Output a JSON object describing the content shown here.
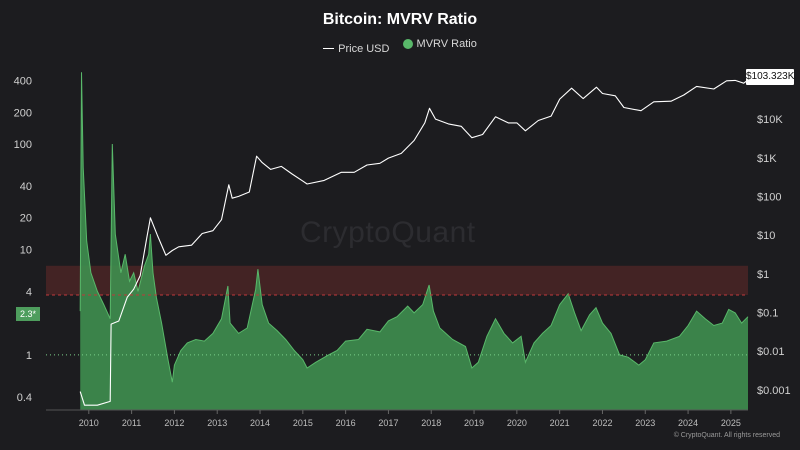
{
  "chart_data": {
    "type": "line",
    "title": "Bitcoin: MVRV Ratio",
    "watermark": "CryptoQuant",
    "copyright": "© CryptoQuant. All rights reserved",
    "legend": {
      "placement": "top-center",
      "entries": [
        "Price USD",
        "MVRV Ratio"
      ]
    },
    "grid": false,
    "x_ticks": [
      "2010",
      "2011",
      "2012",
      "2013",
      "2014",
      "2015",
      "2016",
      "2017",
      "2018",
      "2019",
      "2020",
      "2021",
      "2022",
      "2023",
      "2024",
      "2025"
    ],
    "x_range": [
      2009.0,
      2025.4
    ],
    "left_axis": {
      "scale": "log",
      "range": [
        0.3,
        600
      ],
      "ticks": [
        400,
        200,
        100,
        40,
        20,
        10,
        4,
        1,
        0.4
      ]
    },
    "right_axis": {
      "scale": "log",
      "range": [
        0.0003,
        300000
      ],
      "ticks": [
        {
          "value": 10000,
          "label": "$10K"
        },
        {
          "value": 1000,
          "label": "$1K"
        },
        {
          "value": 100,
          "label": "$100"
        },
        {
          "value": 10,
          "label": "$10"
        },
        {
          "value": 1,
          "label": "$1"
        },
        {
          "value": 0.1,
          "label": "$0.1"
        },
        {
          "value": 0.01,
          "label": "$0.01"
        },
        {
          "value": 0.001,
          "label": "$0.001"
        }
      ]
    },
    "current_price_label": "$103.323K",
    "current_mvrv_label": "2.3*",
    "zones": {
      "overvalued_band": [
        3.7,
        7
      ],
      "red_dashed_level": 3.7,
      "green_dotted_level": 1.0
    },
    "colors": {
      "mvrv_fill": "#3f8f4f",
      "mvrv_line": "#59b86a",
      "price": "#ffffff",
      "red_zone": "#4a2426",
      "background": "#1c1c1f"
    },
    "series": [
      {
        "name": "MVRV Ratio",
        "axis": "left",
        "points": [
          [
            2009.8,
            2.6
          ],
          [
            2009.83,
            480
          ],
          [
            2009.87,
            60
          ],
          [
            2009.95,
            12
          ],
          [
            2010.05,
            6
          ],
          [
            2010.2,
            4
          ],
          [
            2010.35,
            3
          ],
          [
            2010.5,
            2.2
          ],
          [
            2010.55,
            100
          ],
          [
            2010.62,
            14
          ],
          [
            2010.75,
            6
          ],
          [
            2010.85,
            9
          ],
          [
            2010.95,
            5
          ],
          [
            2011.05,
            6
          ],
          [
            2011.15,
            4
          ],
          [
            2011.3,
            7
          ],
          [
            2011.4,
            9
          ],
          [
            2011.44,
            14
          ],
          [
            2011.5,
            6
          ],
          [
            2011.58,
            3.5
          ],
          [
            2011.7,
            2
          ],
          [
            2011.85,
            0.9
          ],
          [
            2011.95,
            0.55
          ],
          [
            2012.0,
            0.8
          ],
          [
            2012.15,
            1.1
          ],
          [
            2012.3,
            1.3
          ],
          [
            2012.5,
            1.4
          ],
          [
            2012.7,
            1.35
          ],
          [
            2012.9,
            1.6
          ],
          [
            2013.1,
            2.2
          ],
          [
            2013.25,
            4.5
          ],
          [
            2013.3,
            2
          ],
          [
            2013.5,
            1.6
          ],
          [
            2013.7,
            1.8
          ],
          [
            2013.9,
            4.2
          ],
          [
            2013.95,
            6.5
          ],
          [
            2014.05,
            3
          ],
          [
            2014.2,
            2
          ],
          [
            2014.4,
            1.7
          ],
          [
            2014.6,
            1.4
          ],
          [
            2014.8,
            1.1
          ],
          [
            2015.0,
            0.9
          ],
          [
            2015.1,
            0.75
          ],
          [
            2015.3,
            0.85
          ],
          [
            2015.6,
            1.0
          ],
          [
            2015.8,
            1.1
          ],
          [
            2016.0,
            1.35
          ],
          [
            2016.3,
            1.4
          ],
          [
            2016.5,
            1.75
          ],
          [
            2016.8,
            1.65
          ],
          [
            2017.0,
            2.1
          ],
          [
            2017.2,
            2.3
          ],
          [
            2017.45,
            2.9
          ],
          [
            2017.6,
            2.5
          ],
          [
            2017.8,
            3.0
          ],
          [
            2017.95,
            4.6
          ],
          [
            2018.05,
            2.6
          ],
          [
            2018.2,
            1.8
          ],
          [
            2018.5,
            1.4
          ],
          [
            2018.8,
            1.2
          ],
          [
            2018.95,
            0.75
          ],
          [
            2019.1,
            0.85
          ],
          [
            2019.3,
            1.5
          ],
          [
            2019.5,
            2.2
          ],
          [
            2019.7,
            1.6
          ],
          [
            2019.9,
            1.3
          ],
          [
            2020.1,
            1.5
          ],
          [
            2020.2,
            0.85
          ],
          [
            2020.4,
            1.3
          ],
          [
            2020.6,
            1.6
          ],
          [
            2020.8,
            1.9
          ],
          [
            2021.0,
            3.0
          ],
          [
            2021.2,
            3.8
          ],
          [
            2021.35,
            2.5
          ],
          [
            2021.5,
            1.7
          ],
          [
            2021.7,
            2.4
          ],
          [
            2021.85,
            2.8
          ],
          [
            2022.0,
            2.0
          ],
          [
            2022.2,
            1.6
          ],
          [
            2022.4,
            1.0
          ],
          [
            2022.6,
            0.95
          ],
          [
            2022.85,
            0.8
          ],
          [
            2023.0,
            0.9
          ],
          [
            2023.2,
            1.3
          ],
          [
            2023.5,
            1.35
          ],
          [
            2023.8,
            1.5
          ],
          [
            2024.0,
            1.9
          ],
          [
            2024.2,
            2.6
          ],
          [
            2024.4,
            2.2
          ],
          [
            2024.6,
            1.9
          ],
          [
            2024.8,
            2.0
          ],
          [
            2024.95,
            2.7
          ],
          [
            2025.1,
            2.5
          ],
          [
            2025.25,
            2.0
          ],
          [
            2025.4,
            2.3
          ]
        ]
      },
      {
        "name": "Price USD",
        "axis": "right",
        "points": [
          [
            2009.8,
            0.0009
          ],
          [
            2009.9,
            0.0004
          ],
          [
            2010.0,
            0.0004
          ],
          [
            2010.2,
            0.0004
          ],
          [
            2010.5,
            0.0005
          ],
          [
            2010.52,
            0.05
          ],
          [
            2010.7,
            0.06
          ],
          [
            2010.9,
            0.25
          ],
          [
            2011.05,
            0.4
          ],
          [
            2011.2,
            0.9
          ],
          [
            2011.35,
            8
          ],
          [
            2011.44,
            28
          ],
          [
            2011.6,
            10
          ],
          [
            2011.8,
            3
          ],
          [
            2011.95,
            4
          ],
          [
            2012.1,
            5
          ],
          [
            2012.4,
            5.5
          ],
          [
            2012.65,
            11
          ],
          [
            2012.9,
            13
          ],
          [
            2013.1,
            25
          ],
          [
            2013.27,
            200
          ],
          [
            2013.35,
            90
          ],
          [
            2013.5,
            100
          ],
          [
            2013.75,
            130
          ],
          [
            2013.92,
            1100
          ],
          [
            2014.05,
            750
          ],
          [
            2014.25,
            500
          ],
          [
            2014.5,
            600
          ],
          [
            2014.75,
            380
          ],
          [
            2015.0,
            250
          ],
          [
            2015.1,
            210
          ],
          [
            2015.5,
            260
          ],
          [
            2015.9,
            420
          ],
          [
            2016.2,
            420
          ],
          [
            2016.5,
            650
          ],
          [
            2016.8,
            720
          ],
          [
            2017.0,
            980
          ],
          [
            2017.3,
            1300
          ],
          [
            2017.6,
            2800
          ],
          [
            2017.85,
            8000
          ],
          [
            2017.96,
            19000
          ],
          [
            2018.1,
            10000
          ],
          [
            2018.4,
            7500
          ],
          [
            2018.7,
            6500
          ],
          [
            2018.95,
            3300
          ],
          [
            2019.2,
            4000
          ],
          [
            2019.5,
            11500
          ],
          [
            2019.8,
            8000
          ],
          [
            2020.0,
            8000
          ],
          [
            2020.2,
            5000
          ],
          [
            2020.5,
            9200
          ],
          [
            2020.8,
            12000
          ],
          [
            2021.0,
            33000
          ],
          [
            2021.28,
            63000
          ],
          [
            2021.55,
            34000
          ],
          [
            2021.86,
            67000
          ],
          [
            2022.0,
            46000
          ],
          [
            2022.3,
            40000
          ],
          [
            2022.5,
            20000
          ],
          [
            2022.9,
            16500
          ],
          [
            2023.2,
            28000
          ],
          [
            2023.6,
            29000
          ],
          [
            2023.9,
            42000
          ],
          [
            2024.2,
            70000
          ],
          [
            2024.6,
            60000
          ],
          [
            2024.9,
            98000
          ],
          [
            2025.1,
            100000
          ],
          [
            2025.3,
            85000
          ],
          [
            2025.4,
            103323
          ]
        ]
      }
    ]
  }
}
